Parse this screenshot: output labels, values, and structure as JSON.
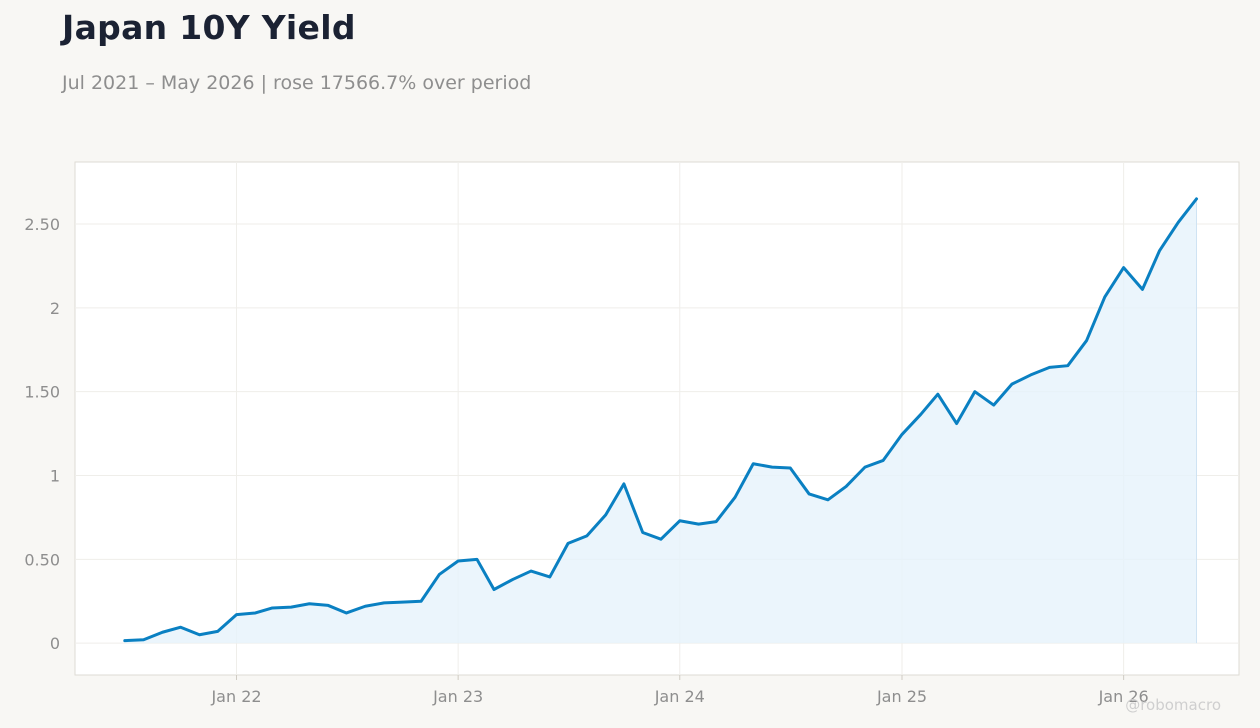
{
  "title": "Japan 10Y Yield",
  "subtitle": "Jul 2021 – May 2026 | rose 17566.7% over period",
  "watermark": "@robomacro",
  "colors": {
    "line": "#0a80c2",
    "area": "#e6f2fb",
    "background": "#f8f7f4",
    "plot_background": "#ffffff"
  },
  "chart_data": {
    "type": "area",
    "title": "Japan 10Y Yield",
    "subtitle": "Jul 2021 – May 2026 | rose 17566.7% over period",
    "xlabel": "",
    "ylabel": "",
    "ylim": [
      -0.19,
      2.87
    ],
    "xlim": [
      "2021-04-10",
      "2026-07-10"
    ],
    "grid": true,
    "legend": "none",
    "y_ticks": [
      0,
      0.5,
      1,
      1.5,
      2,
      2.5
    ],
    "y_tick_labels": [
      "0",
      "0.50",
      "1",
      "1.50",
      "2",
      "2.50"
    ],
    "x_ticks": [
      "2022-01-01",
      "2023-01-01",
      "2024-01-01",
      "2025-01-01",
      "2026-01-01"
    ],
    "x_tick_labels": [
      "Jan 22",
      "Jan 23",
      "Jan 24",
      "Jan 25",
      "Jan 26"
    ],
    "series": [
      {
        "x": [
          "2021-07-01",
          "2021-08-01",
          "2021-09-01",
          "2021-10-01",
          "2021-11-01",
          "2021-12-01",
          "2022-01-01",
          "2022-02-01",
          "2022-03-01",
          "2022-04-01",
          "2022-05-01",
          "2022-06-01",
          "2022-07-01",
          "2022-08-01",
          "2022-09-01",
          "2022-10-01",
          "2022-11-01",
          "2022-12-01",
          "2023-01-01",
          "2023-02-01",
          "2023-03-01",
          "2023-04-01",
          "2023-05-01",
          "2023-06-01",
          "2023-07-01",
          "2023-08-01",
          "2023-09-01",
          "2023-10-01",
          "2023-11-01",
          "2023-12-01",
          "2024-01-01",
          "2024-02-01",
          "2024-03-01",
          "2024-04-01",
          "2024-05-01",
          "2024-06-01",
          "2024-07-01",
          "2024-08-01",
          "2024-09-01",
          "2024-10-01",
          "2024-11-01",
          "2024-12-01",
          "2025-01-01",
          "2025-02-01",
          "2025-03-01",
          "2025-04-01",
          "2025-05-01",
          "2025-06-01",
          "2025-07-01",
          "2025-08-01",
          "2025-09-01",
          "2025-10-01",
          "2025-11-01",
          "2025-12-01",
          "2026-01-01",
          "2026-02-01",
          "2026-03-01",
          "2026-04-01",
          "2026-05-01"
        ],
        "values": [
          0.015,
          0.02,
          0.065,
          0.095,
          0.05,
          0.07,
          0.17,
          0.18,
          0.21,
          0.215,
          0.235,
          0.225,
          0.18,
          0.22,
          0.24,
          0.245,
          0.25,
          0.41,
          0.49,
          0.5,
          0.32,
          0.38,
          0.43,
          0.395,
          0.595,
          0.64,
          0.765,
          0.95,
          0.66,
          0.62,
          0.73,
          0.71,
          0.725,
          0.87,
          1.07,
          1.05,
          1.045,
          0.89,
          0.855,
          0.935,
          1.05,
          1.09,
          1.245,
          1.365,
          1.485,
          1.31,
          1.5,
          1.42,
          1.545,
          1.6,
          1.645,
          1.655,
          1.805,
          2.065,
          2.24,
          2.11,
          2.34,
          2.51,
          2.65
        ]
      }
    ]
  }
}
